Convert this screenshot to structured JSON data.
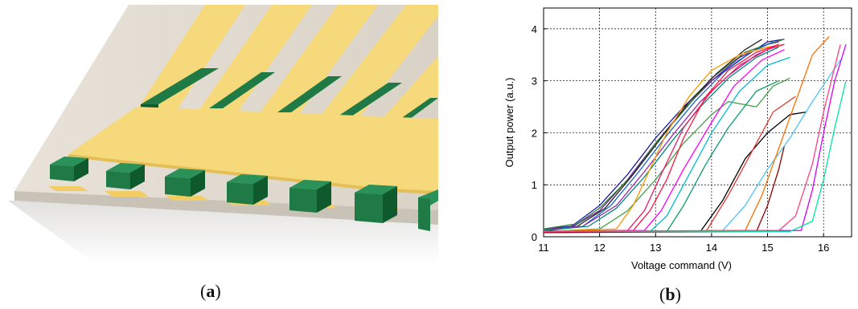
{
  "panels": {
    "a": {
      "caption_letter": "a"
    },
    "b": {
      "caption_letter": "b"
    }
  },
  "colors": {
    "gold": "#f6d97a",
    "gold_dark": "#e5bf55",
    "green": "#1f7a45",
    "green_dark": "#0f5a2d",
    "substrate": "#ddd6cc"
  },
  "chart_data": {
    "type": "line",
    "xlabel": "Voltage command (V)",
    "ylabel": "Output power (a.u.)",
    "xlim": [
      11,
      16.5
    ],
    "ylim": [
      0,
      4.4
    ],
    "xticks": [
      11,
      12,
      13,
      14,
      15,
      16
    ],
    "yticks": [
      0,
      1,
      2,
      3,
      4
    ],
    "grid": true,
    "series": [
      {
        "color": "#1a1aa8",
        "x": [
          11,
          11.5,
          12,
          12.5,
          13,
          13.5,
          14,
          14.5,
          15,
          15.3
        ],
        "y": [
          0.15,
          0.2,
          0.6,
          1.2,
          1.9,
          2.5,
          3.0,
          3.4,
          3.75,
          3.8
        ]
      },
      {
        "color": "#6a1b9a",
        "x": [
          11,
          11.5,
          12,
          12.5,
          13,
          13.5,
          14,
          14.5,
          15,
          15.2
        ],
        "y": [
          0.12,
          0.18,
          0.5,
          1.1,
          1.8,
          2.45,
          3.0,
          3.45,
          3.7,
          3.75
        ]
      },
      {
        "color": "#2e7d32",
        "x": [
          11,
          11.6,
          12,
          12.6,
          13,
          13.6,
          14,
          14.6,
          15,
          15.3
        ],
        "y": [
          0.15,
          0.25,
          0.55,
          1.2,
          1.8,
          2.55,
          3.05,
          3.55,
          3.7,
          3.8
        ]
      },
      {
        "color": "#222222",
        "x": [
          11,
          11.6,
          12.1,
          12.6,
          13.1,
          13.6,
          14.1,
          14.6,
          14.9
        ],
        "y": [
          0.1,
          0.2,
          0.55,
          1.2,
          1.9,
          2.6,
          3.15,
          3.6,
          3.8
        ]
      },
      {
        "color": "#1565c0",
        "x": [
          11,
          11.7,
          12.2,
          12.7,
          13.2,
          13.7,
          14.2,
          14.7,
          15.1
        ],
        "y": [
          0.12,
          0.2,
          0.6,
          1.25,
          1.95,
          2.6,
          3.15,
          3.55,
          3.75
        ]
      },
      {
        "color": "#9c27b0",
        "x": [
          11,
          11.7,
          12.3,
          12.8,
          13.3,
          13.8,
          14.3,
          14.8,
          15.2
        ],
        "y": [
          0.14,
          0.2,
          0.6,
          1.25,
          1.95,
          2.6,
          3.1,
          3.5,
          3.7
        ]
      },
      {
        "color": "#00897b",
        "x": [
          11,
          11.8,
          12.3,
          12.8,
          13.3,
          13.8,
          14.3,
          14.8,
          15.2
        ],
        "y": [
          0.12,
          0.2,
          0.55,
          1.15,
          1.85,
          2.5,
          3.05,
          3.45,
          3.65
        ]
      },
      {
        "color": "#43a047",
        "x": [
          11,
          12,
          12.5,
          13,
          13.5,
          14,
          14.3,
          14.8,
          15.1,
          15.4
        ],
        "y": [
          0.1,
          0.15,
          0.5,
          1.1,
          1.8,
          2.35,
          2.6,
          2.5,
          2.9,
          3.05
        ]
      },
      {
        "color": "#ff9800",
        "x": [
          11,
          12.3,
          12.6,
          12.9,
          13.2,
          13.6,
          14,
          14.5,
          15,
          15.3
        ],
        "y": [
          0.1,
          0.15,
          0.6,
          1.3,
          2.0,
          2.7,
          3.2,
          3.5,
          3.65,
          3.7
        ]
      },
      {
        "color": "#e91e63",
        "x": [
          11,
          12.5,
          12.8,
          13.1,
          13.5,
          14,
          14.5,
          15,
          15.3
        ],
        "y": [
          0.1,
          0.12,
          0.5,
          1.2,
          2.1,
          2.8,
          3.3,
          3.6,
          3.7
        ]
      },
      {
        "color": "#ff1744",
        "x": [
          11,
          12.6,
          12.9,
          13.2,
          13.5,
          13.9,
          14.3,
          14.8,
          15.2
        ],
        "y": [
          0.1,
          0.12,
          0.5,
          1.1,
          1.9,
          2.7,
          3.2,
          3.55,
          3.7
        ]
      },
      {
        "color": "#00bcd4",
        "x": [
          11,
          12.9,
          13.2,
          13.6,
          14,
          14.5,
          15,
          15.4
        ],
        "y": [
          0.1,
          0.1,
          0.4,
          1.2,
          2.0,
          2.8,
          3.3,
          3.45
        ]
      },
      {
        "color": "#ff00ff",
        "x": [
          11,
          12.8,
          13.1,
          13.5,
          14,
          14.4,
          14.9,
          15.3
        ],
        "y": [
          0.1,
          0.12,
          0.5,
          1.3,
          2.2,
          2.9,
          3.4,
          3.6
        ]
      },
      {
        "color": "#0d9e6a",
        "x": [
          11,
          13.2,
          13.5,
          13.9,
          14.3,
          14.8,
          15.2
        ],
        "y": [
          0.08,
          0.1,
          0.6,
          1.4,
          2.1,
          2.8,
          3.0
        ]
      },
      {
        "color": "#000000",
        "x": [
          11,
          13.8,
          14.2,
          14.6,
          15,
          15.4,
          15.7
        ],
        "y": [
          0.1,
          0.1,
          0.7,
          1.5,
          2.0,
          2.35,
          2.4
        ]
      },
      {
        "color": "#e53935",
        "x": [
          11,
          13.9,
          14.3,
          14.7,
          15.1,
          15.5
        ],
        "y": [
          0.1,
          0.1,
          0.8,
          1.6,
          2.4,
          2.7
        ]
      },
      {
        "color": "#8b0000",
        "x": [
          11,
          14.8,
          15,
          15.2,
          15.3
        ],
        "y": [
          0.08,
          0.1,
          0.6,
          1.3,
          1.75
        ]
      },
      {
        "color": "#4fc3f7",
        "x": [
          11,
          14.2,
          14.6,
          15,
          15.4,
          15.8,
          16.3
        ],
        "y": [
          0.1,
          0.12,
          0.6,
          1.3,
          1.9,
          2.6,
          3.4
        ]
      },
      {
        "color": "#ff6f00",
        "x": [
          11,
          14.6,
          14.9,
          15.2,
          15.5,
          15.8,
          16.1
        ],
        "y": [
          0.1,
          0.12,
          0.8,
          1.7,
          2.6,
          3.5,
          3.85
        ]
      },
      {
        "color": "#d500f9",
        "x": [
          11,
          15.6,
          15.8,
          16,
          16.2,
          16.4
        ],
        "y": [
          0.1,
          0.12,
          0.9,
          2.0,
          3.0,
          3.7
        ]
      },
      {
        "color": "#00e5a0",
        "x": [
          11,
          15.4,
          15.8,
          16.0,
          16.2,
          16.4
        ],
        "y": [
          0.1,
          0.1,
          0.3,
          1.1,
          2.1,
          3.0
        ]
      },
      {
        "color": "#ff4081",
        "x": [
          11,
          15.2,
          15.5,
          15.8,
          16,
          16.3
        ],
        "y": [
          0.1,
          0.12,
          0.4,
          1.4,
          2.4,
          3.7
        ]
      }
    ]
  }
}
